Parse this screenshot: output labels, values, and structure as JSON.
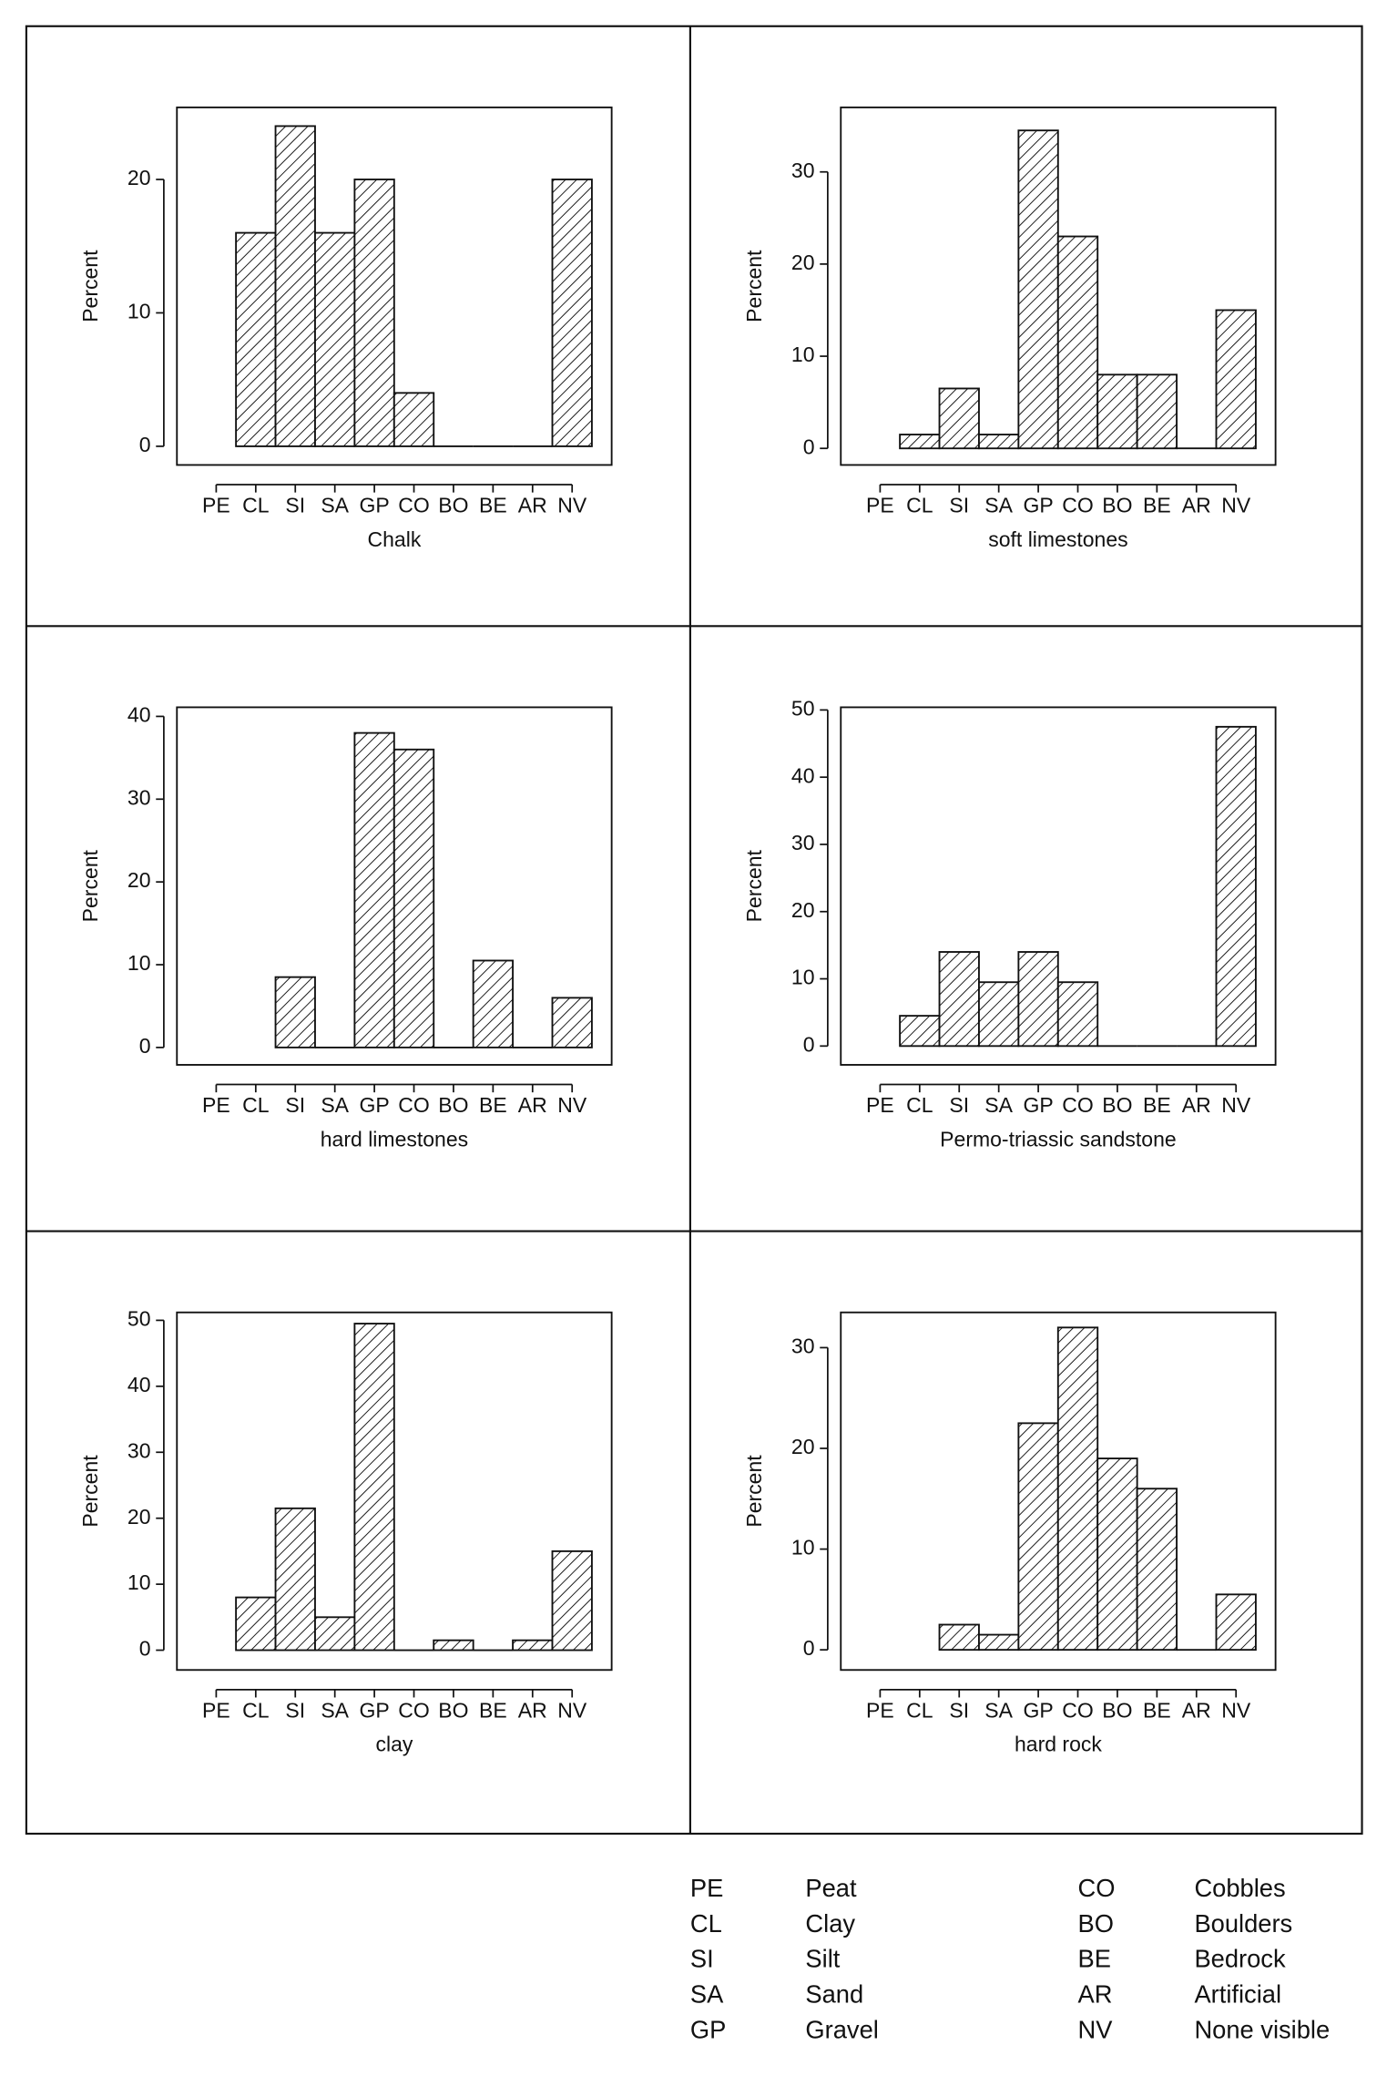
{
  "chart_data": [
    {
      "type": "bar",
      "xlabel": "Chalk",
      "ylabel": "Percent",
      "categories": [
        "PE",
        "CL",
        "SI",
        "SA",
        "GP",
        "CO",
        "BO",
        "BE",
        "AR",
        "NV"
      ],
      "values": [
        null,
        16,
        24,
        16,
        20,
        4,
        0,
        0,
        0,
        20
      ],
      "ylim": [
        -1.4,
        25.4
      ],
      "yticks": [
        0,
        10,
        20
      ]
    },
    {
      "type": "bar",
      "xlabel": "soft limestones",
      "ylabel": "Percent",
      "categories": [
        "PE",
        "CL",
        "SI",
        "SA",
        "GP",
        "CO",
        "BO",
        "BE",
        "AR",
        "NV"
      ],
      "values": [
        null,
        1.5,
        6.5,
        1.5,
        34.5,
        23,
        8,
        8,
        0,
        15
      ],
      "ylim": [
        -1.8,
        37
      ],
      "yticks": [
        0,
        10,
        20,
        30
      ]
    },
    {
      "type": "bar",
      "xlabel": "hard limestones",
      "ylabel": "Percent",
      "categories": [
        "PE",
        "CL",
        "SI",
        "SA",
        "GP",
        "CO",
        "BO",
        "BE",
        "AR",
        "NV"
      ],
      "values": [
        null,
        null,
        8.5,
        0,
        38,
        36,
        0,
        10.5,
        0,
        6
      ],
      "ylim": [
        -2.1,
        41.1
      ],
      "yticks": [
        0,
        10,
        20,
        30,
        40
      ]
    },
    {
      "type": "bar",
      "xlabel": "Permo-triassic sandstone",
      "ylabel": "Percent",
      "categories": [
        "PE",
        "CL",
        "SI",
        "SA",
        "GP",
        "CO",
        "BO",
        "BE",
        "AR",
        "NV"
      ],
      "values": [
        null,
        4.5,
        14,
        9.5,
        14,
        9.5,
        0,
        0,
        0,
        47.5
      ],
      "ylim": [
        -2.8,
        50.4
      ],
      "yticks": [
        0,
        10,
        20,
        30,
        40,
        50
      ]
    },
    {
      "type": "bar",
      "xlabel": "clay",
      "ylabel": "Percent",
      "categories": [
        "PE",
        "CL",
        "SI",
        "SA",
        "GP",
        "CO",
        "BO",
        "BE",
        "AR",
        "NV"
      ],
      "values": [
        null,
        8,
        21.5,
        5,
        49.5,
        0,
        1.5,
        0,
        1.5,
        15
      ],
      "ylim": [
        -3,
        51.2
      ],
      "yticks": [
        0,
        10,
        20,
        30,
        40,
        50
      ]
    },
    {
      "type": "bar",
      "xlabel": "hard rock",
      "ylabel": "Percent",
      "categories": [
        "PE",
        "CL",
        "SI",
        "SA",
        "GP",
        "CO",
        "BO",
        "BE",
        "AR",
        "NV"
      ],
      "values": [
        null,
        null,
        2.5,
        1.5,
        22.5,
        32,
        19,
        16,
        0,
        5.5
      ],
      "ylim": [
        -2,
        33.5
      ],
      "yticks": [
        0,
        10,
        20,
        30
      ]
    }
  ],
  "legend": [
    {
      "code": "PE",
      "name": "Peat"
    },
    {
      "code": "CL",
      "name": "Clay"
    },
    {
      "code": "SI",
      "name": "Silt"
    },
    {
      "code": "SA",
      "name": "Sand"
    },
    {
      "code": "GP",
      "name": "Gravel"
    },
    {
      "code": "CO",
      "name": "Cobbles"
    },
    {
      "code": "BO",
      "name": "Boulders"
    },
    {
      "code": "BE",
      "name": "Bedrock"
    },
    {
      "code": "AR",
      "name": "Artificial"
    },
    {
      "code": "NV",
      "name": "None visible"
    }
  ]
}
